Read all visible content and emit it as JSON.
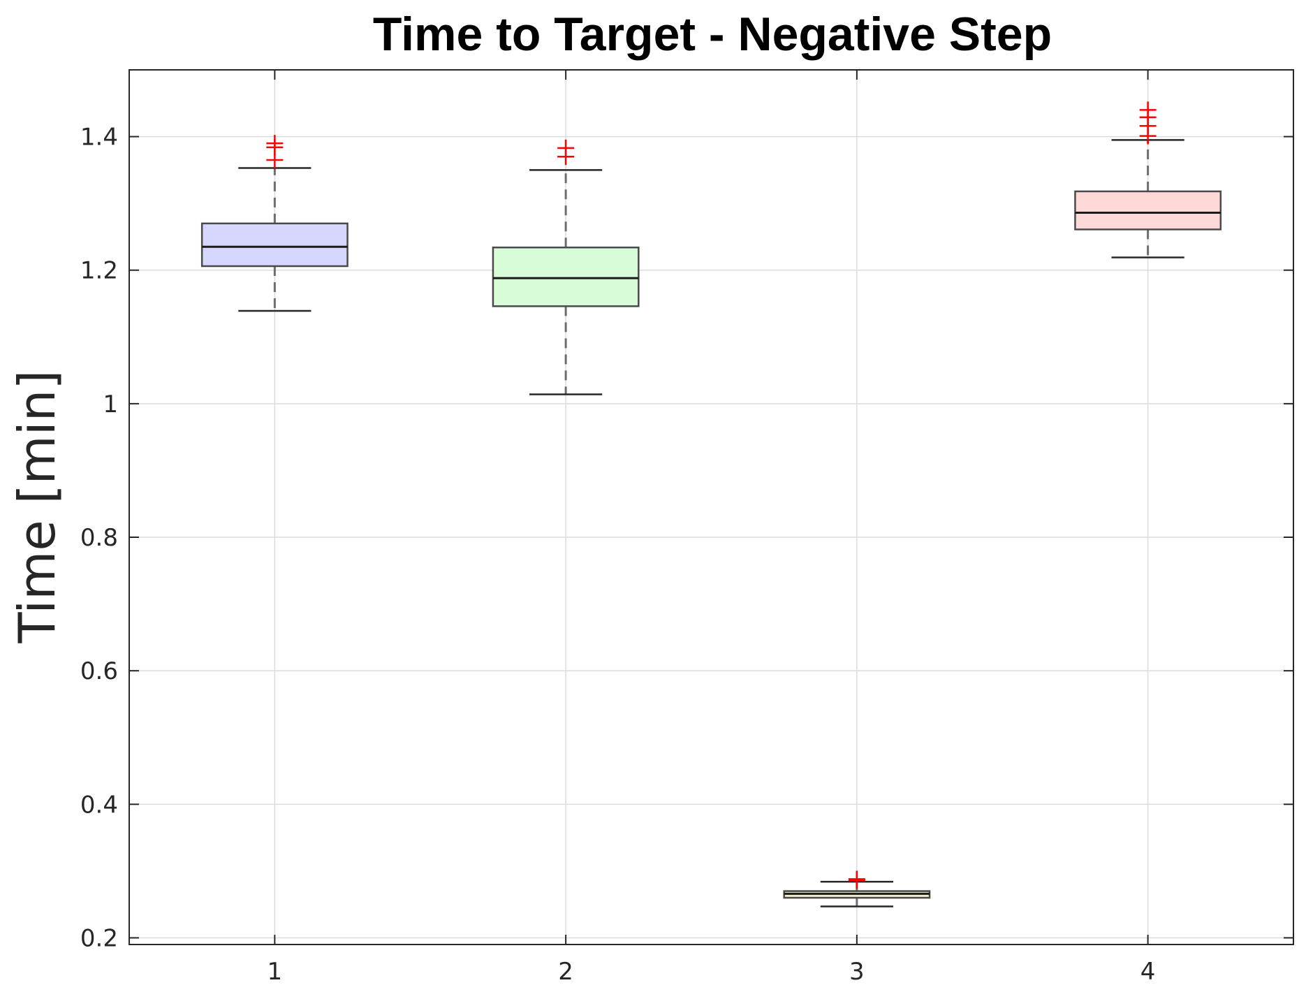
{
  "chart_data": {
    "type": "box",
    "title": "Time to Target - Negative Step",
    "xlabel": "",
    "ylabel": "Time [min]",
    "ylim": [
      0.19,
      1.5
    ],
    "xlim": [
      0.5,
      4.5
    ],
    "yticks": [
      0.2,
      0.4,
      0.6,
      0.8,
      1,
      1.2,
      1.4
    ],
    "ytick_labels": [
      "0.2",
      "0.4",
      "0.6",
      "0.8",
      "1",
      "1.2",
      "1.4"
    ],
    "grid": true,
    "categories": [
      "1",
      "2",
      "3",
      "4"
    ],
    "boxes": [
      {
        "label": "1",
        "whisker_low": 1.139,
        "q1": 1.206,
        "median": 1.235,
        "q3": 1.27,
        "whisker_high": 1.353,
        "outliers": [
          1.365,
          1.384,
          1.39
        ],
        "color": "#d6d6ff"
      },
      {
        "label": "2",
        "whisker_low": 1.014,
        "q1": 1.146,
        "median": 1.188,
        "q3": 1.234,
        "whisker_high": 1.35,
        "outliers": [
          1.37,
          1.383
        ],
        "color": "#d8fcd8"
      },
      {
        "label": "3",
        "whisker_low": 0.247,
        "q1": 0.26,
        "median": 0.266,
        "q3": 0.27,
        "whisker_high": 0.284,
        "outliers": [
          0.286,
          0.288
        ],
        "color": "#f0f0c8"
      },
      {
        "label": "4",
        "whisker_low": 1.219,
        "q1": 1.261,
        "median": 1.286,
        "q3": 1.318,
        "whisker_high": 1.395,
        "outliers": [
          1.401,
          1.416,
          1.429,
          1.44
        ],
        "color": "#ffd8d8"
      }
    ]
  }
}
